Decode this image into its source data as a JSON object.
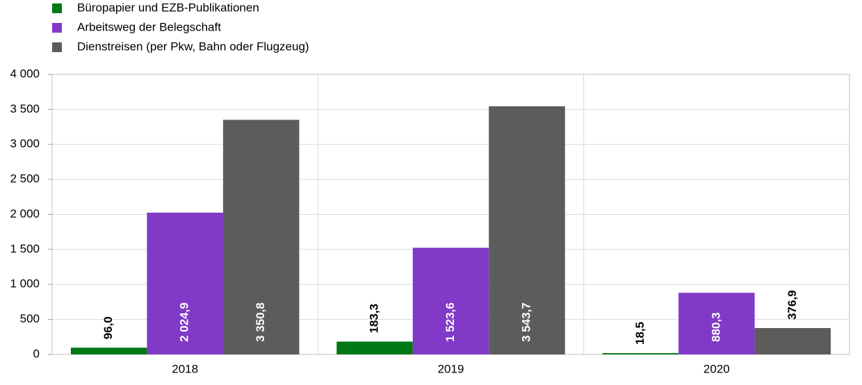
{
  "chart_data": {
    "type": "bar",
    "categories": [
      "2018",
      "2019",
      "2020"
    ],
    "series": [
      {
        "name": "Büropapier und EZB-Publikationen",
        "color": "#007816",
        "values": [
          96.0,
          183.3,
          18.5
        ],
        "value_labels": [
          "96,0",
          "183,3",
          "18,5"
        ]
      },
      {
        "name": "Arbeitsweg der Belegschaft",
        "color": "#8139c7",
        "values": [
          2024.9,
          1523.6,
          880.3
        ],
        "value_labels": [
          "2 024,9",
          "1 523,6",
          "880,3"
        ]
      },
      {
        "name": "Dienstreisen (per Pkw, Bahn oder Flugzeug)",
        "color": "#5c5c5c",
        "values": [
          3350.8,
          3543.7,
          376.9
        ],
        "value_labels": [
          "3 350,8",
          "3 543,7",
          "376,9"
        ]
      }
    ],
    "ylim": [
      0,
      4000
    ],
    "yticks": [
      0,
      500,
      {
        "value": 1000,
        "label": "1 000"
      },
      {
        "value": 1500,
        "label": "1 500"
      },
      {
        "value": 2000,
        "label": "2 000"
      },
      {
        "value": 2500,
        "label": "2 500"
      },
      {
        "value": 3000,
        "label": "3 000"
      },
      {
        "value": 3500,
        "label": "3 500"
      },
      {
        "value": 4000,
        "label": "4 000"
      }
    ],
    "grid": true,
    "legend": "top-left"
  }
}
